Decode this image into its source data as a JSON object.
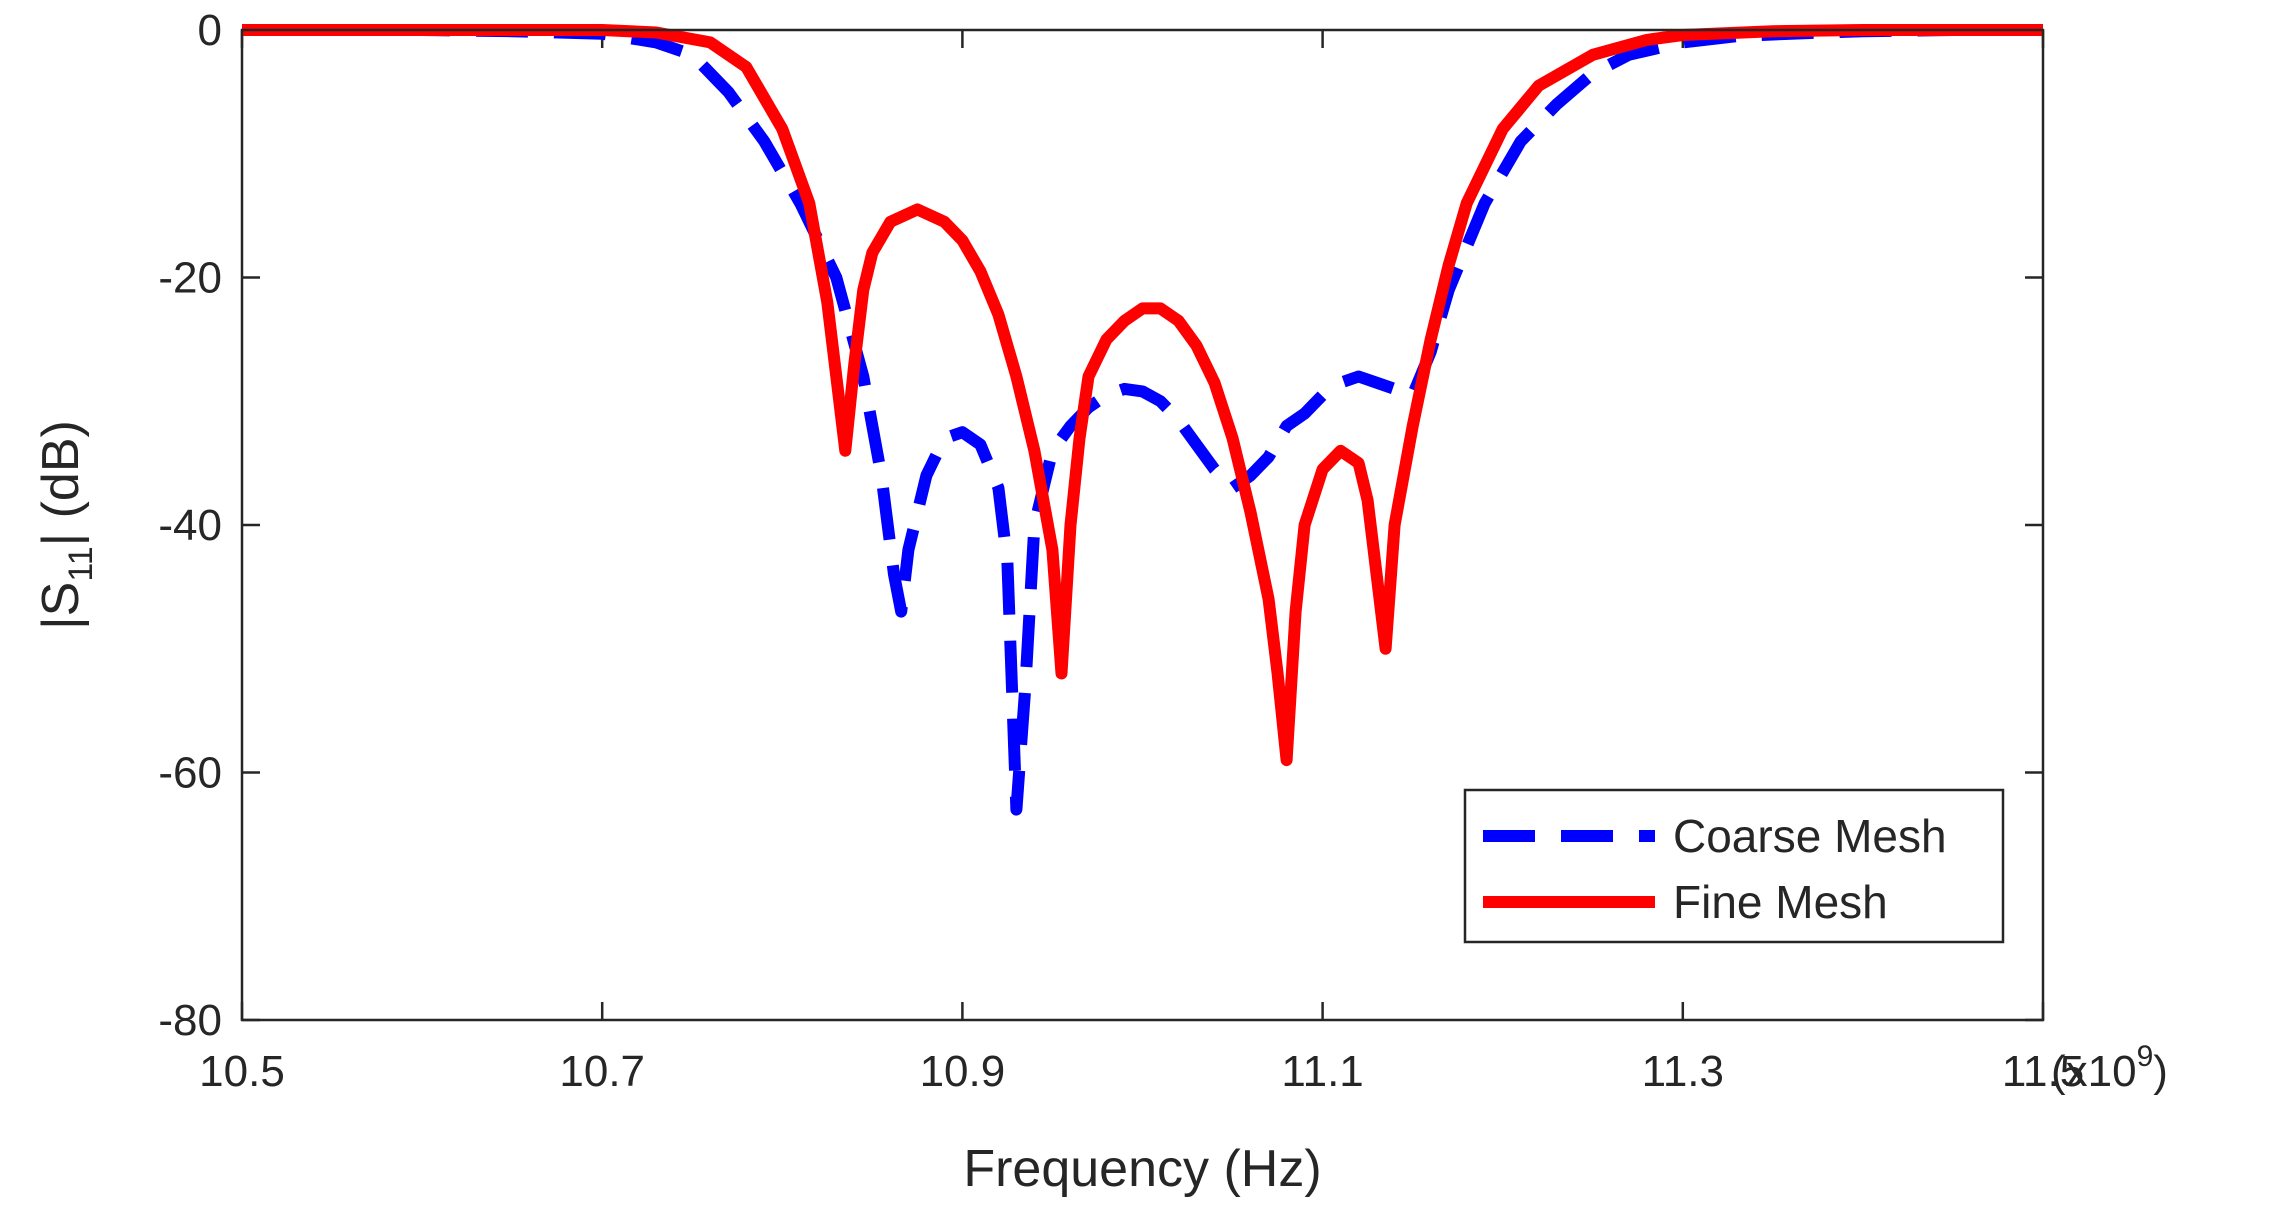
{
  "chart_data": {
    "type": "line",
    "title": "",
    "xlabel": "Frequency (Hz)",
    "ylabel_parts": [
      "|S",
      "11",
      "| (dB)"
    ],
    "x_multiplier_parts": [
      "(x10",
      "9",
      ")"
    ],
    "xlim": [
      10.5,
      11.5
    ],
    "ylim": [
      -80,
      0
    ],
    "xticks": [
      10.5,
      10.7,
      10.9,
      11.1,
      11.3,
      11.5
    ],
    "xtick_labels": [
      "10.5",
      "10.7",
      "10.9",
      "11.1",
      "11.3",
      "11.5"
    ],
    "yticks": [
      0,
      -20,
      -40,
      -60,
      -80
    ],
    "ytick_labels": [
      "0",
      "-20",
      "-40",
      "-60",
      "-80"
    ],
    "grid": false,
    "legend_position": "bottom-right",
    "series": [
      {
        "name": "Coarse Mesh",
        "color": "#0000ff",
        "style": "dashed",
        "x": [
          10.5,
          10.6,
          10.65,
          10.7,
          10.73,
          10.75,
          10.77,
          10.79,
          10.81,
          10.83,
          10.845,
          10.855,
          10.862,
          10.866,
          10.87,
          10.88,
          10.89,
          10.9,
          10.91,
          10.92,
          10.925,
          10.93,
          10.935,
          10.94,
          10.95,
          10.96,
          10.97,
          10.98,
          10.99,
          11.0,
          11.01,
          11.02,
          11.03,
          11.04,
          11.05,
          11.06,
          11.07,
          11.08,
          11.09,
          11.1,
          11.11,
          11.12,
          11.13,
          11.14,
          11.15,
          11.16,
          11.17,
          11.19,
          11.21,
          11.23,
          11.25,
          11.27,
          11.3,
          11.33,
          11.36,
          11.4,
          11.45,
          11.5
        ],
        "y": [
          0,
          0,
          -0.1,
          -0.3,
          -1,
          -2,
          -5,
          -9,
          -14,
          -20,
          -28,
          -36,
          -44,
          -47,
          -42,
          -36,
          -33,
          -32.5,
          -33.5,
          -37,
          -43,
          -63,
          -53,
          -40,
          -34,
          -32,
          -30.5,
          -29.5,
          -29,
          -29.2,
          -30,
          -31.5,
          -33.5,
          -35.5,
          -37,
          -36,
          -34.5,
          -32,
          -31,
          -29.5,
          -28.5,
          -28,
          -28.5,
          -29,
          -29.5,
          -26,
          -21,
          -14,
          -9,
          -6,
          -3.5,
          -2,
          -1,
          -0.5,
          -0.3,
          -0.1,
          0,
          0
        ]
      },
      {
        "name": "Fine Mesh",
        "color": "#ff0000",
        "style": "solid",
        "x": [
          10.5,
          10.6,
          10.65,
          10.7,
          10.73,
          10.76,
          10.78,
          10.8,
          10.815,
          10.825,
          10.83,
          10.835,
          10.84,
          10.845,
          10.85,
          10.86,
          10.875,
          10.89,
          10.9,
          10.91,
          10.92,
          10.93,
          10.94,
          10.95,
          10.955,
          10.96,
          10.965,
          10.97,
          10.98,
          10.99,
          11.0,
          11.01,
          11.02,
          11.03,
          11.04,
          11.05,
          11.06,
          11.07,
          11.075,
          11.08,
          11.085,
          11.09,
          11.1,
          11.11,
          11.12,
          11.125,
          11.13,
          11.135,
          11.14,
          11.15,
          11.16,
          11.17,
          11.18,
          11.2,
          11.22,
          11.25,
          11.28,
          11.3,
          11.35,
          11.4,
          11.5
        ],
        "y": [
          0,
          0,
          0,
          0,
          -0.2,
          -1,
          -3,
          -8,
          -14,
          -22,
          -28,
          -34,
          -27,
          -21,
          -18,
          -15.5,
          -14.5,
          -15.5,
          -17,
          -19.5,
          -23,
          -28,
          -34,
          -42,
          -52,
          -40,
          -33,
          -28,
          -25,
          -23.5,
          -22.5,
          -22.5,
          -23.5,
          -25.5,
          -28.5,
          -33,
          -39,
          -46,
          -52,
          -59,
          -47,
          -40,
          -35.5,
          -34,
          -35,
          -38,
          -44,
          -50,
          -40,
          -32,
          -25,
          -19,
          -14,
          -8,
          -4.5,
          -2,
          -0.8,
          -0.4,
          -0.1,
          0,
          0
        ]
      }
    ]
  }
}
